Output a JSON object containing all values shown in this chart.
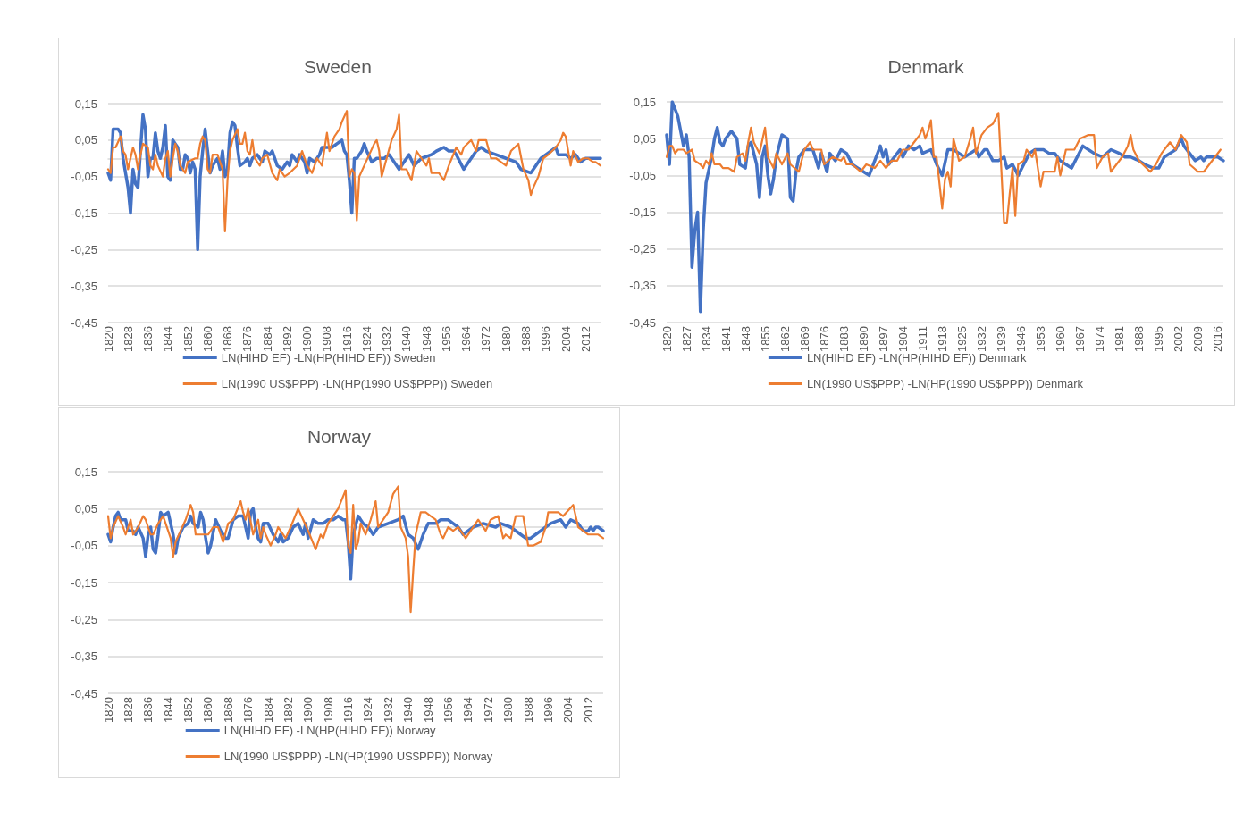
{
  "chart_data": [
    {
      "type": "line",
      "title": "Sweden",
      "xlim": [
        1820,
        2018
      ],
      "xticks": [
        1820,
        1828,
        1836,
        1844,
        1852,
        1860,
        1868,
        1876,
        1884,
        1892,
        1900,
        1908,
        1916,
        1924,
        1932,
        1940,
        1948,
        1956,
        1964,
        1972,
        1980,
        1988,
        1996,
        2004,
        2012
      ],
      "ylim": [
        -0.45,
        0.15
      ],
      "yticks": [
        {
          "value": -0.45,
          "label": "-0,45"
        },
        {
          "value": -0.35,
          "label": "-0,35"
        },
        {
          "value": -0.25,
          "label": "-0,25"
        },
        {
          "value": -0.15,
          "label": "-0,15"
        },
        {
          "value": -0.05,
          "label": "-0,05"
        },
        {
          "value": 0.05,
          "label": "0,05"
        },
        {
          "value": 0.15,
          "label": "0,15"
        }
      ],
      "grid": "y",
      "legend": "bottom",
      "series": [
        {
          "name": "LN(HIHD EF) -LN(HP(HIHD EF)) Sweden",
          "color": "#4472c4",
          "x": [
            1820,
            1821,
            1822,
            1824,
            1825,
            1826,
            1828,
            1829,
            1830,
            1831,
            1832,
            1834,
            1835,
            1836,
            1837,
            1838,
            1839,
            1840,
            1841,
            1842,
            1843,
            1844,
            1845,
            1846,
            1847,
            1848,
            1849,
            1850,
            1851,
            1852,
            1853,
            1854,
            1855,
            1856,
            1857,
            1858,
            1859,
            1860,
            1861,
            1862,
            1864,
            1865,
            1866,
            1867,
            1868,
            1869,
            1870,
            1871,
            1872,
            1873,
            1875,
            1876,
            1877,
            1878,
            1880,
            1882,
            1883,
            1885,
            1886,
            1888,
            1890,
            1892,
            1893,
            1894,
            1896,
            1897,
            1899,
            1900,
            1901,
            1903,
            1905,
            1906,
            1908,
            1910,
            1912,
            1914,
            1915,
            1916,
            1917,
            1918,
            1919,
            1920,
            1922,
            1923,
            1924,
            1926,
            1928,
            1931,
            1933,
            1935,
            1937,
            1939,
            1941,
            1943,
            1946,
            1950,
            1952,
            1955,
            1957,
            1959,
            1960,
            1963,
            1965,
            1968,
            1970,
            1972,
            1976,
            1980,
            1984,
            1986,
            1990,
            1992,
            1994,
            1996,
            1998,
            2000,
            2001,
            2004,
            2006,
            2008,
            2010,
            2012,
            2014,
            2016,
            2018
          ],
          "values": [
            -0.04,
            -0.06,
            0.08,
            0.08,
            0.07,
            0.0,
            -0.08,
            -0.15,
            -0.03,
            -0.07,
            -0.08,
            0.12,
            0.08,
            -0.05,
            0.0,
            0.0,
            0.07,
            0.02,
            0.0,
            0.03,
            0.09,
            -0.05,
            -0.06,
            0.05,
            0.04,
            0.03,
            -0.03,
            -0.03,
            0.01,
            0.0,
            -0.04,
            -0.01,
            -0.03,
            -0.25,
            -0.05,
            0.02,
            0.08,
            0.02,
            -0.04,
            -0.02,
            0.0,
            -0.03,
            0.02,
            -0.05,
            -0.03,
            0.07,
            0.1,
            0.09,
            0.03,
            -0.02,
            -0.01,
            0.0,
            -0.02,
            0.0,
            0.01,
            -0.01,
            0.02,
            0.01,
            0.02,
            -0.02,
            -0.03,
            -0.01,
            -0.02,
            0.01,
            -0.01,
            0.01,
            -0.01,
            -0.04,
            0.0,
            -0.01,
            0.01,
            0.03,
            0.03,
            0.03,
            0.04,
            0.05,
            0.02,
            0.01,
            -0.06,
            -0.15,
            0.0,
            0.0,
            0.02,
            0.04,
            0.02,
            -0.01,
            0.0,
            0.0,
            0.01,
            -0.01,
            -0.03,
            -0.01,
            0.01,
            -0.02,
            0.0,
            0.01,
            0.02,
            0.03,
            0.02,
            0.02,
            0.01,
            -0.03,
            -0.01,
            0.02,
            0.03,
            0.02,
            0.01,
            0.0,
            -0.01,
            -0.03,
            -0.04,
            -0.02,
            0.0,
            0.01,
            0.02,
            0.03,
            0.01,
            0.01,
            0.0,
            0.01,
            -0.01,
            0.0,
            0.0,
            0.0,
            0.0
          ]
        },
        {
          "name": "LN(1990 US$PPP) -LN(HP(1990 US$PPP)) Sweden",
          "color": "#ed7d31",
          "x": [
            1820,
            1821,
            1822,
            1823,
            1825,
            1826,
            1827,
            1828,
            1829,
            1830,
            1831,
            1832,
            1833,
            1834,
            1836,
            1837,
            1838,
            1839,
            1840,
            1842,
            1843,
            1844,
            1845,
            1846,
            1847,
            1848,
            1849,
            1851,
            1852,
            1855,
            1856,
            1857,
            1858,
            1859,
            1860,
            1861,
            1862,
            1864,
            1866,
            1867,
            1868,
            1869,
            1870,
            1872,
            1873,
            1874,
            1875,
            1876,
            1877,
            1878,
            1879,
            1881,
            1882,
            1884,
            1886,
            1888,
            1889,
            1891,
            1893,
            1896,
            1898,
            1900,
            1902,
            1904,
            1906,
            1908,
            1909,
            1911,
            1913,
            1914,
            1916,
            1917,
            1918,
            1919,
            1920,
            1921,
            1923,
            1925,
            1927,
            1928,
            1929,
            1930,
            1932,
            1934,
            1936,
            1937,
            1938,
            1940,
            1942,
            1944,
            1946,
            1948,
            1949,
            1950,
            1953,
            1955,
            1957,
            1960,
            1962,
            1963,
            1966,
            1968,
            1969,
            1972,
            1974,
            1976,
            1978,
            1980,
            1982,
            1985,
            1987,
            1989,
            1990,
            1991,
            1993,
            1995,
            1997,
            2000,
            2002,
            2003,
            2004,
            2006,
            2007,
            2009,
            2011,
            2013,
            2015,
            2016,
            2018
          ],
          "values": [
            -0.03,
            -0.04,
            0.03,
            0.03,
            0.06,
            0.02,
            0.01,
            -0.03,
            0.0,
            0.03,
            0.01,
            -0.03,
            0.01,
            0.04,
            0.03,
            -0.02,
            -0.03,
            0.01,
            -0.02,
            -0.05,
            0.0,
            0.02,
            -0.05,
            0.0,
            0.04,
            0.02,
            -0.02,
            -0.04,
            -0.01,
            0.0,
            0.0,
            0.04,
            0.06,
            0.05,
            -0.03,
            -0.04,
            0.01,
            0.01,
            -0.03,
            -0.2,
            -0.06,
            0.02,
            0.05,
            0.08,
            0.04,
            0.04,
            0.07,
            0.02,
            0.01,
            0.05,
            0.0,
            -0.02,
            0.0,
            0.01,
            -0.04,
            -0.06,
            -0.03,
            -0.05,
            -0.04,
            -0.02,
            0.02,
            -0.02,
            -0.04,
            0.0,
            -0.02,
            0.07,
            0.02,
            0.06,
            0.08,
            0.1,
            0.13,
            -0.05,
            -0.03,
            -0.04,
            -0.17,
            -0.05,
            -0.02,
            0.01,
            0.04,
            0.05,
            0.02,
            -0.05,
            0.0,
            0.05,
            0.08,
            0.12,
            -0.03,
            -0.03,
            -0.06,
            0.02,
            0.0,
            -0.02,
            0.0,
            -0.04,
            -0.04,
            -0.06,
            -0.02,
            0.03,
            0.01,
            0.03,
            0.05,
            0.02,
            0.05,
            0.05,
            0.0,
            0.0,
            -0.01,
            -0.02,
            0.02,
            0.04,
            -0.03,
            -0.06,
            -0.1,
            -0.08,
            -0.05,
            0.0,
            0.01,
            0.03,
            0.05,
            0.07,
            0.06,
            -0.02,
            0.02,
            -0.01,
            0.0,
            0.0,
            -0.01,
            -0.01,
            -0.02
          ]
        }
      ]
    },
    {
      "type": "line",
      "title": "Denmark",
      "xlim": [
        1820,
        2018
      ],
      "xticks": [
        1820,
        1827,
        1834,
        1841,
        1848,
        1855,
        1862,
        1869,
        1876,
        1883,
        1890,
        1897,
        1904,
        1911,
        1918,
        1925,
        1932,
        1939,
        1946,
        1953,
        1960,
        1967,
        1974,
        1981,
        1988,
        1995,
        2002,
        2009,
        2016
      ],
      "ylim": [
        -0.45,
        0.15
      ],
      "yticks": [
        {
          "value": -0.45,
          "label": "-0,45"
        },
        {
          "value": -0.35,
          "label": "-0,35"
        },
        {
          "value": -0.25,
          "label": "-0,25"
        },
        {
          "value": -0.15,
          "label": "-0,15"
        },
        {
          "value": -0.05,
          "label": "-0,05"
        },
        {
          "value": 0.05,
          "label": "0,05"
        },
        {
          "value": 0.15,
          "label": "0,15"
        }
      ],
      "grid": "y",
      "legend": "bottom",
      "series": [
        {
          "name": "LN(HIHD EF) -LN(HP(HIHD EF)) Denmark",
          "color": "#4472c4",
          "x": [
            1820,
            1821,
            1822,
            1823,
            1824,
            1825,
            1826,
            1827,
            1828,
            1829,
            1830,
            1831,
            1832,
            1833,
            1834,
            1836,
            1837,
            1838,
            1839,
            1840,
            1841,
            1843,
            1845,
            1846,
            1848,
            1849,
            1850,
            1852,
            1853,
            1854,
            1855,
            1856,
            1857,
            1858,
            1859,
            1860,
            1861,
            1863,
            1864,
            1865,
            1866,
            1867,
            1869,
            1872,
            1874,
            1875,
            1877,
            1878,
            1880,
            1882,
            1884,
            1886,
            1888,
            1890,
            1892,
            1894,
            1896,
            1897,
            1898,
            1899,
            1901,
            1903,
            1904,
            1906,
            1908,
            1910,
            1911,
            1914,
            1916,
            1918,
            1920,
            1922,
            1924,
            1926,
            1928,
            1930,
            1931,
            1933,
            1934,
            1936,
            1938,
            1940,
            1941,
            1943,
            1945,
            1947,
            1949,
            1951,
            1954,
            1956,
            1958,
            1960,
            1962,
            1964,
            1966,
            1968,
            1970,
            1972,
            1975,
            1978,
            1981,
            1983,
            1985,
            1988,
            1990,
            1993,
            1995,
            1997,
            1999,
            2001,
            2003,
            2004,
            2006,
            2008,
            2010,
            2011,
            2012,
            2014,
            2016,
            2018
          ],
          "values": [
            0.06,
            -0.02,
            0.15,
            0.13,
            0.11,
            0.07,
            0.03,
            0.06,
            0.0,
            -0.3,
            -0.2,
            -0.15,
            -0.42,
            -0.2,
            -0.07,
            0.0,
            0.05,
            0.08,
            0.04,
            0.03,
            0.05,
            0.07,
            0.05,
            -0.02,
            -0.03,
            0.03,
            0.04,
            -0.02,
            -0.11,
            0.0,
            0.03,
            -0.05,
            -0.1,
            -0.06,
            0.0,
            0.03,
            0.06,
            0.05,
            -0.11,
            -0.12,
            -0.04,
            0.0,
            0.02,
            0.02,
            -0.03,
            0.01,
            -0.04,
            0.01,
            -0.01,
            0.02,
            0.01,
            -0.02,
            -0.03,
            -0.04,
            -0.05,
            -0.01,
            0.03,
            0.0,
            0.02,
            -0.02,
            0.0,
            0.02,
            0.0,
            0.03,
            0.02,
            0.03,
            0.01,
            0.02,
            -0.02,
            -0.05,
            0.02,
            0.02,
            0.01,
            0.0,
            0.01,
            0.02,
            0.0,
            0.02,
            0.02,
            -0.01,
            -0.01,
            0.0,
            -0.03,
            -0.02,
            -0.05,
            -0.02,
            0.01,
            0.02,
            0.02,
            0.01,
            0.01,
            -0.01,
            -0.02,
            -0.03,
            0.0,
            0.03,
            0.02,
            0.01,
            0.0,
            0.02,
            0.01,
            0.0,
            0.0,
            -0.01,
            -0.02,
            -0.03,
            -0.03,
            0.0,
            0.01,
            0.02,
            0.05,
            0.03,
            0.01,
            -0.01,
            0.0,
            -0.01,
            0.0,
            0.0,
            0.0,
            -0.01
          ]
        },
        {
          "name": "LN(1990 US$PPP) -LN(HP(1990 US$PPP)) Denmark",
          "color": "#ed7d31",
          "x": [
            1820,
            1821,
            1822,
            1823,
            1824,
            1826,
            1827,
            1829,
            1830,
            1832,
            1833,
            1834,
            1835,
            1836,
            1837,
            1839,
            1840,
            1842,
            1844,
            1845,
            1847,
            1848,
            1849,
            1850,
            1851,
            1853,
            1855,
            1856,
            1858,
            1859,
            1861,
            1863,
            1864,
            1867,
            1869,
            1871,
            1872,
            1875,
            1876,
            1879,
            1882,
            1883,
            1884,
            1886,
            1889,
            1891,
            1894,
            1896,
            1898,
            1900,
            1902,
            1904,
            1906,
            1908,
            1910,
            1911,
            1912,
            1913,
            1914,
            1915,
            1916,
            1918,
            1919,
            1920,
            1921,
            1922,
            1924,
            1926,
            1928,
            1929,
            1930,
            1932,
            1934,
            1936,
            1938,
            1940,
            1941,
            1942,
            1943,
            1944,
            1945,
            1947,
            1948,
            1950,
            1951,
            1953,
            1954,
            1956,
            1958,
            1959,
            1960,
            1962,
            1965,
            1967,
            1970,
            1972,
            1973,
            1975,
            1977,
            1978,
            1980,
            1982,
            1984,
            1985,
            1986,
            1988,
            1992,
            1994,
            1996,
            1999,
            2001,
            2003,
            2005,
            2006,
            2009,
            2011,
            2013,
            2015,
            2017
          ],
          "values": [
            0.0,
            0.03,
            0.03,
            0.01,
            0.02,
            0.02,
            0.01,
            0.02,
            -0.01,
            -0.02,
            -0.03,
            -0.01,
            -0.02,
            0.01,
            -0.02,
            -0.02,
            -0.03,
            -0.03,
            -0.04,
            0.0,
            0.01,
            -0.01,
            0.04,
            0.08,
            0.04,
            0.01,
            0.08,
            0.0,
            -0.03,
            0.01,
            -0.02,
            0.01,
            -0.02,
            -0.04,
            0.02,
            0.04,
            0.02,
            0.02,
            -0.02,
            0.0,
            -0.01,
            0.0,
            -0.02,
            -0.02,
            -0.04,
            -0.02,
            -0.03,
            -0.01,
            -0.03,
            -0.01,
            -0.01,
            0.02,
            0.02,
            0.04,
            0.06,
            0.08,
            0.05,
            0.07,
            0.1,
            0.0,
            0.0,
            -0.14,
            -0.06,
            -0.04,
            -0.08,
            0.05,
            -0.01,
            0.0,
            0.05,
            0.08,
            0.01,
            0.06,
            0.08,
            0.09,
            0.12,
            -0.18,
            -0.18,
            -0.1,
            -0.03,
            -0.16,
            -0.02,
            -0.01,
            0.02,
            0.0,
            0.02,
            -0.08,
            -0.04,
            -0.04,
            -0.04,
            0.0,
            -0.05,
            0.02,
            0.02,
            0.05,
            0.06,
            0.06,
            -0.03,
            0.0,
            0.01,
            -0.04,
            -0.02,
            0.0,
            0.03,
            0.06,
            0.02,
            -0.01,
            -0.04,
            -0.02,
            0.01,
            0.04,
            0.02,
            0.06,
            0.04,
            -0.02,
            -0.04,
            -0.04,
            -0.02,
            0.0,
            0.02
          ]
        }
      ]
    },
    {
      "type": "line",
      "title": "Norway",
      "xlim": [
        1820,
        2018
      ],
      "xticks": [
        1820,
        1828,
        1836,
        1844,
        1852,
        1860,
        1868,
        1876,
        1884,
        1892,
        1900,
        1908,
        1916,
        1924,
        1932,
        1940,
        1948,
        1956,
        1964,
        1972,
        1980,
        1988,
        1996,
        2004,
        2012
      ],
      "ylim": [
        -0.45,
        0.15
      ],
      "yticks": [
        {
          "value": -0.45,
          "label": "-0,45"
        },
        {
          "value": -0.35,
          "label": "-0,35"
        },
        {
          "value": -0.25,
          "label": "-0,25"
        },
        {
          "value": -0.15,
          "label": "-0,15"
        },
        {
          "value": -0.05,
          "label": "-0,05"
        },
        {
          "value": 0.05,
          "label": "0,05"
        },
        {
          "value": 0.15,
          "label": "0,15"
        }
      ],
      "grid": "y",
      "legend": "bottom",
      "series": [
        {
          "name": "LN(HIHD EF) -LN(HP(HIHD EF)) Norway",
          "color": "#4472c4",
          "x": [
            1820,
            1821,
            1822,
            1823,
            1824,
            1825,
            1827,
            1828,
            1830,
            1831,
            1832,
            1834,
            1835,
            1836,
            1837,
            1838,
            1839,
            1840,
            1841,
            1842,
            1844,
            1846,
            1847,
            1848,
            1850,
            1852,
            1853,
            1854,
            1856,
            1857,
            1858,
            1859,
            1860,
            1861,
            1863,
            1865,
            1867,
            1868,
            1870,
            1872,
            1874,
            1876,
            1877,
            1878,
            1879,
            1880,
            1881,
            1882,
            1884,
            1886,
            1888,
            1889,
            1890,
            1892,
            1894,
            1896,
            1898,
            1899,
            1900,
            1902,
            1904,
            1906,
            1908,
            1910,
            1912,
            1914,
            1915,
            1916,
            1917,
            1918,
            1920,
            1922,
            1924,
            1926,
            1928,
            1932,
            1936,
            1938,
            1940,
            1942,
            1944,
            1946,
            1948,
            1951,
            1953,
            1956,
            1958,
            1960,
            1962,
            1964,
            1966,
            1970,
            1975,
            1977,
            1981,
            1985,
            1987,
            1989,
            1991,
            1993,
            1995,
            1997,
            2001,
            2003,
            2005,
            2008,
            2010,
            2012,
            2013,
            2014,
            2015,
            2016,
            2018
          ],
          "values": [
            -0.02,
            -0.04,
            0.0,
            0.03,
            0.04,
            0.02,
            0.02,
            -0.01,
            -0.01,
            -0.02,
            0.0,
            -0.03,
            -0.08,
            -0.02,
            0.0,
            -0.06,
            -0.07,
            -0.02,
            0.04,
            0.03,
            0.04,
            -0.02,
            -0.07,
            -0.03,
            0.0,
            0.01,
            0.03,
            0.01,
            0.0,
            0.04,
            0.02,
            -0.03,
            -0.07,
            -0.05,
            0.02,
            -0.01,
            -0.03,
            -0.03,
            0.02,
            0.03,
            0.03,
            -0.03,
            0.04,
            0.05,
            0.0,
            -0.03,
            -0.04,
            0.01,
            0.01,
            -0.02,
            -0.04,
            -0.02,
            -0.04,
            -0.03,
            0.0,
            0.01,
            -0.02,
            0.01,
            -0.03,
            0.02,
            0.01,
            0.01,
            0.02,
            0.02,
            0.03,
            0.02,
            0.02,
            -0.04,
            -0.14,
            -0.02,
            0.03,
            0.01,
            0.0,
            -0.02,
            0.0,
            0.01,
            0.02,
            0.03,
            -0.02,
            -0.03,
            -0.06,
            -0.02,
            0.01,
            0.01,
            0.02,
            0.02,
            0.01,
            0.0,
            -0.02,
            -0.01,
            0.0,
            0.01,
            0.0,
            0.01,
            0.0,
            -0.02,
            -0.03,
            -0.03,
            -0.02,
            -0.01,
            0.0,
            0.01,
            0.02,
            0.0,
            0.02,
            0.01,
            -0.01,
            -0.01,
            0.0,
            -0.01,
            0.0,
            0.0,
            -0.01
          ]
        },
        {
          "name": "LN(1990 US$PPP) -LN(HP(1990 US$PPP)) Norway",
          "color": "#ed7d31",
          "x": [
            1820,
            1821,
            1822,
            1824,
            1826,
            1827,
            1829,
            1830,
            1832,
            1834,
            1835,
            1837,
            1838,
            1840,
            1842,
            1844,
            1845,
            1846,
            1847,
            1849,
            1851,
            1853,
            1854,
            1855,
            1858,
            1860,
            1862,
            1864,
            1866,
            1868,
            1870,
            1873,
            1874,
            1875,
            1876,
            1878,
            1880,
            1881,
            1882,
            1883,
            1885,
            1887,
            1888,
            1891,
            1893,
            1896,
            1898,
            1900,
            1903,
            1905,
            1906,
            1908,
            1910,
            1912,
            1915,
            1916,
            1917,
            1918,
            1919,
            1920,
            1921,
            1923,
            1925,
            1927,
            1928,
            1930,
            1932,
            1934,
            1936,
            1937,
            1939,
            1940,
            1941,
            1942,
            1943,
            1945,
            1947,
            1949,
            1951,
            1953,
            1954,
            1956,
            1958,
            1960,
            1963,
            1965,
            1968,
            1970,
            1971,
            1973,
            1976,
            1978,
            1979,
            1981,
            1983,
            1986,
            1988,
            1990,
            1993,
            1995,
            1996,
            2000,
            2002,
            2006,
            2008,
            2010,
            2012,
            2014,
            2016,
            2018
          ],
          "values": [
            0.03,
            -0.03,
            0.0,
            0.03,
            0.0,
            -0.02,
            0.02,
            -0.02,
            0.0,
            0.03,
            0.02,
            -0.02,
            -0.02,
            0.01,
            0.03,
            -0.01,
            -0.03,
            -0.08,
            -0.04,
            -0.01,
            0.02,
            0.06,
            0.04,
            -0.02,
            -0.02,
            -0.02,
            0.0,
            0.0,
            -0.04,
            0.01,
            0.02,
            0.07,
            0.04,
            0.02,
            0.05,
            -0.02,
            0.02,
            -0.03,
            0.0,
            -0.02,
            -0.05,
            -0.02,
            0.0,
            -0.03,
            0.0,
            0.05,
            0.02,
            -0.01,
            -0.06,
            -0.02,
            -0.03,
            0.01,
            0.03,
            0.05,
            0.1,
            -0.05,
            -0.07,
            0.06,
            -0.06,
            -0.04,
            0.01,
            -0.02,
            0.02,
            0.07,
            0.0,
            0.02,
            0.04,
            0.09,
            0.11,
            0.0,
            -0.03,
            -0.08,
            -0.23,
            -0.12,
            -0.02,
            0.04,
            0.04,
            0.03,
            0.02,
            -0.02,
            -0.03,
            0.0,
            -0.01,
            0.0,
            -0.03,
            -0.01,
            0.02,
            0.0,
            -0.01,
            0.02,
            0.03,
            -0.03,
            -0.02,
            -0.03,
            0.03,
            0.03,
            -0.05,
            -0.05,
            -0.04,
            0.0,
            0.04,
            0.04,
            0.03,
            0.06,
            0.0,
            -0.01,
            -0.02,
            -0.02,
            -0.02,
            -0.03
          ]
        }
      ]
    }
  ]
}
